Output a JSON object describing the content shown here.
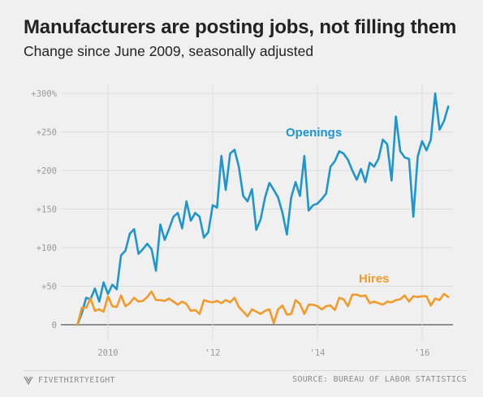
{
  "header": {
    "title": "Manufacturers are posting jobs, not filling them",
    "subtitle": "Change since June 2009, seasonally adjusted"
  },
  "footer": {
    "brand": "FIVETHIRTYEIGHT",
    "source": "SOURCE: BUREAU OF LABOR STATISTICS",
    "brand_icon": "fivethirtyeight-logo-icon"
  },
  "colors": {
    "openings": "#1e96cd",
    "hires": "#f39a2a",
    "grid": "#dcdcdc",
    "baseline": "#555555"
  },
  "chart_data": {
    "type": "line",
    "title": "Manufacturers are posting jobs, not filling them",
    "subtitle": "Change since June 2009, seasonally adjusted",
    "xlabel": "",
    "ylabel": "",
    "y_ticks": [
      0,
      50,
      100,
      150,
      200,
      250,
      300
    ],
    "y_tick_labels": [
      "0",
      "+50",
      "+100",
      "+150",
      "+200",
      "+250",
      "+300%"
    ],
    "x_ticks": [
      2010,
      2012,
      2014,
      2016
    ],
    "x_tick_labels": [
      "2010",
      "'12",
      "'14",
      "'16"
    ],
    "xlim": [
      2009.0,
      2016.75
    ],
    "ylim": [
      -8,
      305
    ],
    "grid": true,
    "series": [
      {
        "name": "Openings",
        "color": "#1e96cd",
        "start": 2009.4167,
        "step": 0.08333,
        "values": [
          0,
          15,
          35,
          33,
          47,
          30,
          55,
          40,
          52,
          46,
          90,
          96,
          118,
          124,
          92,
          98,
          105,
          98,
          70,
          130,
          110,
          124,
          140,
          145,
          125,
          160,
          135,
          145,
          140,
          113,
          120,
          155,
          152,
          219,
          175,
          222,
          227,
          205,
          167,
          160,
          176,
          123,
          137,
          165,
          184,
          175,
          165,
          145,
          117,
          165,
          185,
          167,
          219,
          148,
          155,
          157,
          163,
          170,
          205,
          212,
          225,
          222,
          214,
          200,
          188,
          202,
          185,
          210,
          205,
          215,
          240,
          234,
          187,
          270,
          225,
          217,
          215,
          140,
          218,
          238,
          226,
          240,
          300,
          253,
          264,
          283
        ]
      },
      {
        "name": "Hires",
        "color": "#f39a2a",
        "start": 2009.4167,
        "step": 0.08333,
        "values": [
          0,
          22,
          22,
          34,
          18,
          20,
          17,
          37,
          24,
          23,
          38,
          24,
          28,
          35,
          30,
          31,
          36,
          43,
          32,
          32,
          31,
          34,
          30,
          26,
          30,
          27,
          18,
          19,
          14,
          32,
          30,
          29,
          31,
          28,
          32,
          29,
          35,
          23,
          17,
          11,
          20,
          17,
          14,
          18,
          20,
          2,
          20,
          25,
          13,
          14,
          32,
          27,
          14,
          26,
          26,
          24,
          20,
          24,
          25,
          19,
          35,
          33,
          24,
          39,
          39,
          37,
          38,
          28,
          30,
          28,
          26,
          30,
          29,
          32,
          33,
          38,
          30,
          37,
          36,
          37,
          37,
          25,
          34,
          32,
          40,
          36
        ]
      }
    ]
  },
  "labels": {
    "openings": "Openings",
    "hires": "Hires"
  }
}
